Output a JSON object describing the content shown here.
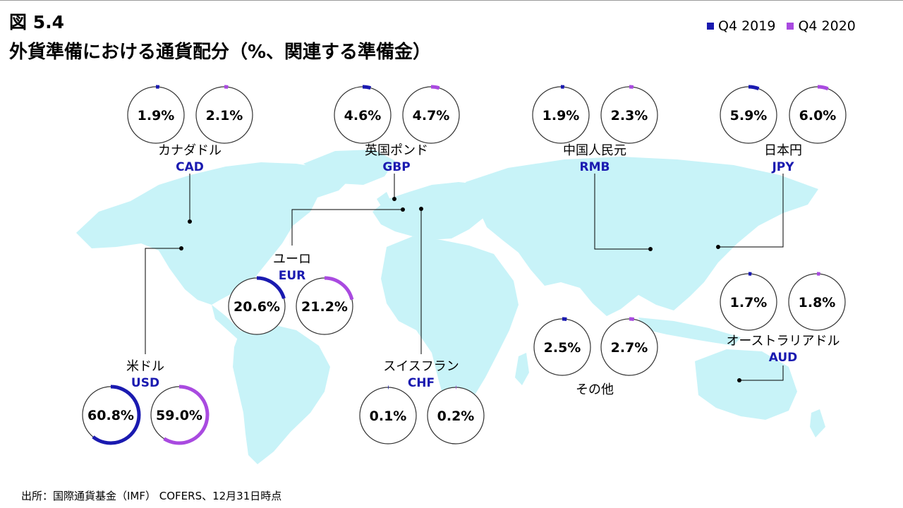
{
  "figure_number": "図 5.4",
  "title": "外貨準備における通貨配分（%、関連する準備金）",
  "footnote": "出所：国際通貨基金（IMF） COFERS、12月31日時点",
  "colors": {
    "q4_2019": "#1a1ab0",
    "q4_2020": "#a94ae0",
    "map": "#c8f3f8",
    "ring": "#333333"
  },
  "chart_data": {
    "type": "pie",
    "title": "外貨準備における通貨配分（%、関連する準備金）",
    "unit": "%",
    "series": [
      {
        "name": "Q4 2019",
        "color": "#1a1ab0"
      },
      {
        "name": "Q4 2020",
        "color": "#a94ae0"
      }
    ],
    "legend_position": "top-right",
    "currencies": [
      {
        "id": "cad",
        "name": "カナダドル",
        "code": "CAD",
        "q4_2019": 1.9,
        "q4_2020": 2.1
      },
      {
        "id": "gbp",
        "name": "英国ポンド",
        "code": "GBP",
        "q4_2019": 4.6,
        "q4_2020": 4.7
      },
      {
        "id": "rmb",
        "name": "中国人民元",
        "code": "RMB",
        "q4_2019": 1.9,
        "q4_2020": 2.3
      },
      {
        "id": "jpy",
        "name": "日本円",
        "code": "JPY",
        "q4_2019": 5.9,
        "q4_2020": 6.0
      },
      {
        "id": "eur",
        "name": "ユーロ",
        "code": "EUR",
        "q4_2019": 20.6,
        "q4_2020": 21.2
      },
      {
        "id": "aud",
        "name": "オーストラリアドル",
        "code": "AUD",
        "q4_2019": 1.7,
        "q4_2020": 1.8
      },
      {
        "id": "other",
        "name": "その他",
        "code": "",
        "q4_2019": 2.5,
        "q4_2020": 2.7
      },
      {
        "id": "usd",
        "name": "米ドル",
        "code": "USD",
        "q4_2019": 60.8,
        "q4_2020": 59.0
      },
      {
        "id": "chf",
        "name": "スイスフラン",
        "code": "CHF",
        "q4_2019": 0.1,
        "q4_2020": 0.2
      }
    ]
  }
}
